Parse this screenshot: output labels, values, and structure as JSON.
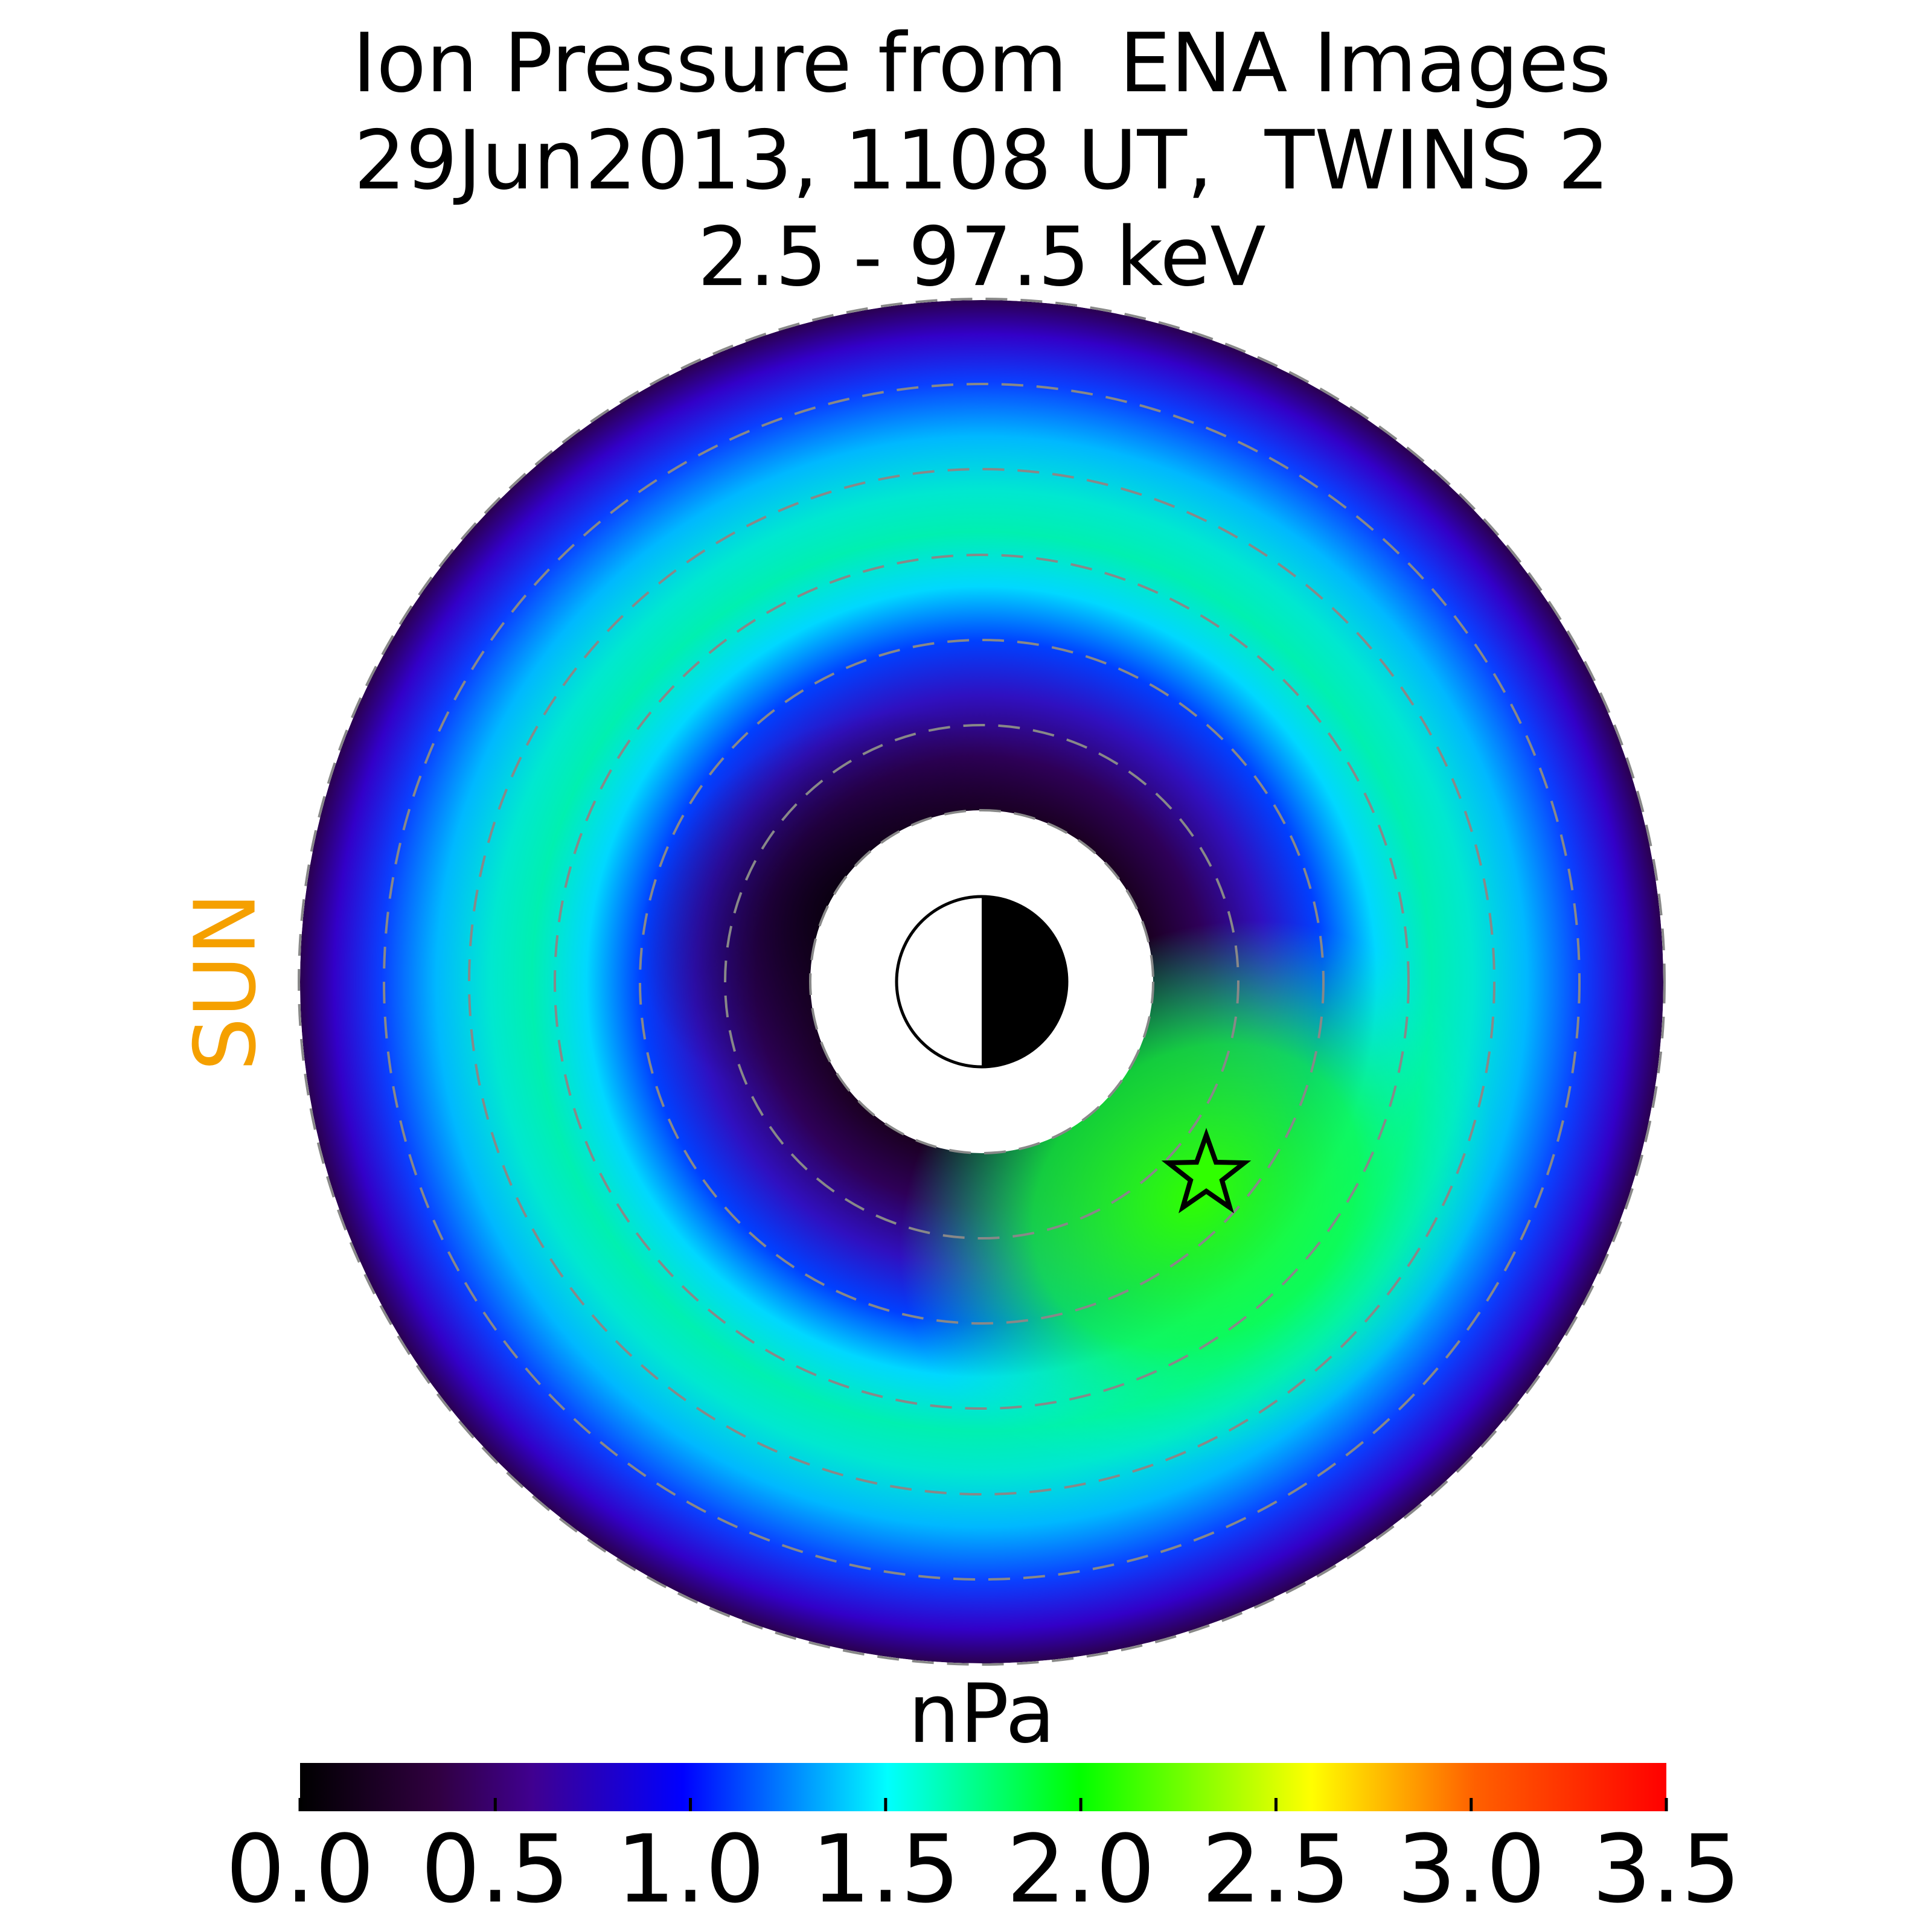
{
  "chart_data": {
    "type": "polar-heatmap",
    "title": [
      "Ion Pressure from  ENA Images",
      "29Jun2013, 1108 UT,  TWINS 2",
      "2.5 - 97.5 keV"
    ],
    "sun_label": "SUN",
    "colorbar": {
      "label": "nPa",
      "lim": [
        0,
        3.5
      ],
      "ticks": [
        {
          "value": 0,
          "label": "0.0"
        },
        {
          "value": 0.5,
          "label": "0.5"
        },
        {
          "value": 1,
          "label": "1.0"
        },
        {
          "value": 1.5,
          "label": "1.5"
        },
        {
          "value": 2,
          "label": "2.0"
        },
        {
          "value": 2.5,
          "label": "2.5"
        },
        {
          "value": 3,
          "label": "3.0"
        },
        {
          "value": 3.5,
          "label": "3.5"
        }
      ]
    }
  }
}
